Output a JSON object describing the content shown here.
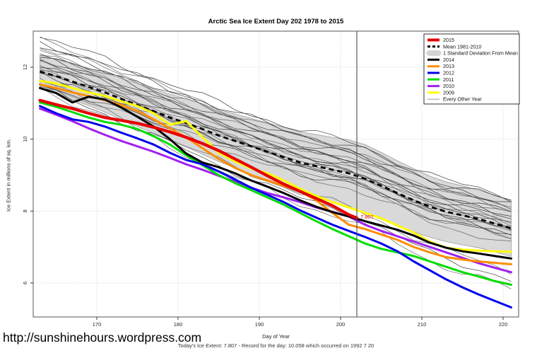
{
  "title": "Arctic Sea Ice Extent Day 202 1978 to 2015",
  "footer": {
    "url": "http://sunshinehours.wordpress.com",
    "caption": "Today's Ice Extent: 7.807  - Record for the day: 10.058 which occurred on 1992 7 20"
  },
  "chart_data": {
    "type": "line",
    "title": "Arctic Sea Ice Extent Day 202 1978 to 2015",
    "xlabel": "Day of Year",
    "ylabel": "Ice Extent in millions of sq. km.",
    "xlim": [
      162.2,
      221.9
    ],
    "ylim": [
      5.0,
      13.0
    ],
    "xticks": [
      170,
      180,
      190,
      200,
      210,
      220
    ],
    "yticks": [
      6,
      8,
      10,
      12
    ],
    "grid": "dotted",
    "legend_position": "top-right",
    "marker": {
      "day": 202,
      "value": 7.807,
      "label": "7.807",
      "color": "#e60000"
    },
    "days": [
      163,
      165,
      167,
      169,
      171,
      173,
      175,
      177,
      179,
      181,
      183,
      185,
      187,
      189,
      191,
      193,
      195,
      197,
      199,
      201,
      203,
      205,
      207,
      209,
      211,
      213,
      215,
      217,
      219,
      221
    ],
    "mean": {
      "name": "Mean 1981-2010",
      "color": "#000000",
      "values": [
        11.88,
        11.75,
        11.6,
        11.45,
        11.3,
        11.12,
        10.95,
        10.78,
        10.6,
        10.45,
        10.28,
        10.1,
        9.95,
        9.8,
        9.65,
        9.5,
        9.35,
        9.25,
        9.15,
        9.05,
        8.9,
        8.7,
        8.5,
        8.3,
        8.12,
        7.98,
        7.88,
        7.78,
        7.65,
        7.52
      ]
    },
    "band": {
      "name": "1 Standard Deviation From Mean",
      "fill": "#d9d9d9",
      "edge": "#9b9b9b",
      "delta": [
        0.45,
        0.47,
        0.5,
        0.52,
        0.55,
        0.57,
        0.6,
        0.62,
        0.65,
        0.67,
        0.7,
        0.72,
        0.75,
        0.78,
        0.8,
        0.83,
        0.85,
        0.88,
        0.9,
        0.93,
        0.95,
        0.93,
        0.9,
        0.88,
        0.85,
        0.83,
        0.82,
        0.8,
        0.79,
        0.78
      ]
    },
    "series": [
      {
        "name": "2009",
        "color": "#ffff00",
        "width": 3,
        "values": [
          11.62,
          11.55,
          11.42,
          11.3,
          11.2,
          11.05,
          10.92,
          10.72,
          10.4,
          10.5,
          10.05,
          9.62,
          9.38,
          9.18,
          9.05,
          8.85,
          8.62,
          8.42,
          8.25,
          8.1,
          7.95,
          7.8,
          7.6,
          7.4,
          7.15,
          6.98,
          6.93,
          6.9,
          6.88,
          6.87
        ]
      },
      {
        "name": "2010",
        "color": "#a020f0",
        "width": 3,
        "values": [
          10.85,
          10.68,
          10.5,
          10.3,
          10.12,
          9.95,
          9.8,
          9.65,
          9.48,
          9.3,
          9.15,
          8.98,
          8.82,
          8.65,
          8.5,
          8.38,
          8.25,
          8.1,
          7.98,
          7.85,
          7.62,
          7.45,
          7.3,
          7.15,
          7.0,
          6.85,
          6.7,
          6.55,
          6.42,
          6.3
        ]
      },
      {
        "name": "2011",
        "color": "#00dd00",
        "width": 3,
        "values": [
          11.02,
          10.9,
          10.75,
          10.6,
          10.48,
          10.4,
          10.28,
          10.08,
          9.85,
          9.55,
          9.28,
          9.0,
          8.78,
          8.58,
          8.38,
          8.18,
          7.95,
          7.72,
          7.5,
          7.3,
          7.1,
          6.95,
          6.85,
          6.75,
          6.6,
          6.45,
          6.3,
          6.18,
          6.05,
          5.95
        ]
      },
      {
        "name": "2012",
        "color": "#0000ee",
        "width": 3,
        "values": [
          10.92,
          10.72,
          10.55,
          10.48,
          10.35,
          10.18,
          10.02,
          9.85,
          9.62,
          9.42,
          9.3,
          9.1,
          8.88,
          8.65,
          8.45,
          8.25,
          8.02,
          7.82,
          7.62,
          7.45,
          7.28,
          7.1,
          6.88,
          6.6,
          6.35,
          6.1,
          5.88,
          5.68,
          5.5,
          5.32
        ]
      },
      {
        "name": "2013",
        "color": "#ff8c00",
        "width": 3,
        "values": [
          11.52,
          11.42,
          11.3,
          11.2,
          11.08,
          10.95,
          10.78,
          10.55,
          10.3,
          10.05,
          9.75,
          9.45,
          9.2,
          9.0,
          8.85,
          8.7,
          8.55,
          8.3,
          7.95,
          7.62,
          7.5,
          7.35,
          7.2,
          7.0,
          6.85,
          6.72,
          6.65,
          6.6,
          6.56,
          6.52
        ]
      },
      {
        "name": "2014",
        "color": "#000000",
        "width": 3,
        "values": [
          11.42,
          11.28,
          11.02,
          11.18,
          11.1,
          10.88,
          10.62,
          10.35,
          10.0,
          9.6,
          9.35,
          9.22,
          9.05,
          8.85,
          8.68,
          8.5,
          8.3,
          8.12,
          7.97,
          7.85,
          7.72,
          7.6,
          7.48,
          7.32,
          7.12,
          6.98,
          6.88,
          6.82,
          6.75,
          6.68
        ]
      },
      {
        "name": "2015",
        "color": "#e60000",
        "width": 4.2,
        "days": [
          163,
          165,
          167,
          169,
          171,
          173,
          175,
          177,
          179,
          181,
          183,
          185,
          187,
          189,
          191,
          193,
          195,
          197,
          199,
          201,
          202
        ],
        "values": [
          11.08,
          10.96,
          10.85,
          10.72,
          10.6,
          10.52,
          10.44,
          10.33,
          10.2,
          10.05,
          9.88,
          9.68,
          9.45,
          9.22,
          8.98,
          8.75,
          8.55,
          8.35,
          8.15,
          7.9,
          7.807
        ]
      }
    ],
    "other_years": {
      "name": "Every Other Year",
      "colors": [
        "#3d3d3d",
        "#6a6a6a"
      ],
      "offsets": [
        [
          0.95,
          0.85
        ],
        [
          0.85,
          0.6
        ],
        [
          0.8,
          0.75
        ],
        [
          0.7,
          0.5
        ],
        [
          0.65,
          0.7
        ],
        [
          0.6,
          0.35
        ],
        [
          0.5,
          0.55
        ],
        [
          0.45,
          0.2
        ],
        [
          0.4,
          0.45
        ],
        [
          0.35,
          0.1
        ],
        [
          0.3,
          0.35
        ],
        [
          0.25,
          0.0
        ],
        [
          0.2,
          0.25
        ],
        [
          0.15,
          -0.05
        ],
        [
          0.1,
          0.15
        ],
        [
          0.05,
          -0.1
        ],
        [
          0.0,
          0.05
        ],
        [
          -0.05,
          -0.2
        ],
        [
          -0.1,
          -0.05
        ],
        [
          -0.15,
          -0.3
        ],
        [
          -0.2,
          -0.15
        ],
        [
          -0.3,
          -0.45
        ],
        [
          -0.35,
          -0.25
        ],
        [
          -0.4,
          -1.2
        ],
        [
          -0.45,
          -1.45
        ],
        [
          -0.5,
          -1.7
        ]
      ]
    },
    "legend": [
      {
        "label": "2015",
        "swatch": "line",
        "color": "#e60000",
        "width": 4
      },
      {
        "label": "Mean 1981-2010",
        "swatch": "dashed",
        "color": "#000000",
        "width": 3
      },
      {
        "label": "1 Standard Deviation From Mean",
        "swatch": "band",
        "color": "#d4d4d4",
        "width": 8
      },
      {
        "label": "2014",
        "swatch": "line",
        "color": "#000000",
        "width": 3
      },
      {
        "label": "2013",
        "swatch": "line",
        "color": "#ff8c00",
        "width": 3
      },
      {
        "label": "2012",
        "swatch": "line",
        "color": "#0000ee",
        "width": 3
      },
      {
        "label": "2011",
        "swatch": "line",
        "color": "#00dd00",
        "width": 3
      },
      {
        "label": "2010",
        "swatch": "line",
        "color": "#a020f0",
        "width": 3
      },
      {
        "label": "2009",
        "swatch": "line",
        "color": "#ffff00",
        "width": 3
      },
      {
        "label": "Every Other Year",
        "swatch": "line",
        "color": "#8a8a8a",
        "width": 0.9
      }
    ]
  }
}
